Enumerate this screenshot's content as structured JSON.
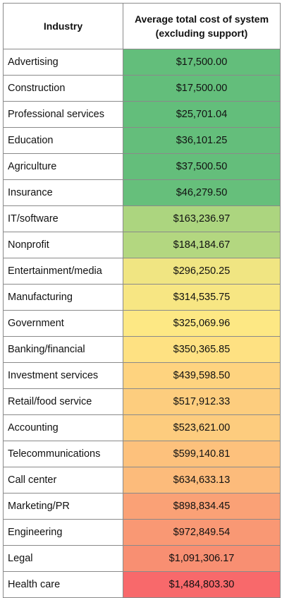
{
  "table": {
    "headers": {
      "industry": "Industry",
      "cost": "Average total cost of system (excluding support)"
    }
  },
  "chart_data": {
    "type": "table",
    "columns": [
      "Industry",
      "Average total cost of system (excluding support)"
    ],
    "rows": [
      {
        "industry": "Advertising",
        "cost": "$17,500.00",
        "value": 17500.0,
        "color": "#63be7b"
      },
      {
        "industry": "Construction",
        "cost": "$17,500.00",
        "value": 17500.0,
        "color": "#63be7b"
      },
      {
        "industry": "Professional services",
        "cost": "$25,701.04",
        "value": 25701.04,
        "color": "#63be7b"
      },
      {
        "industry": "Education",
        "cost": "$36,101.25",
        "value": 36101.25,
        "color": "#64be7b"
      },
      {
        "industry": "Agriculture",
        "cost": "$37,500.50",
        "value": 37500.5,
        "color": "#64be7b"
      },
      {
        "industry": "Insurance",
        "cost": "$46,279.50",
        "value": 46279.5,
        "color": "#66bf7b"
      },
      {
        "industry": "IT/software",
        "cost": "$163,236.97",
        "value": 163236.97,
        "color": "#acd57f"
      },
      {
        "industry": "Nonprofit",
        "cost": "$184,184.67",
        "value": 184184.67,
        "color": "#b3d780"
      },
      {
        "industry": "Entertainment/media",
        "cost": "$296,250.25",
        "value": 296250.25,
        "color": "#f0e582"
      },
      {
        "industry": "Manufacturing",
        "cost": "$314,535.75",
        "value": 314535.75,
        "color": "#f7e683"
      },
      {
        "industry": "Government",
        "cost": "$325,069.96",
        "value": 325069.96,
        "color": "#fde884"
      },
      {
        "industry": "Banking/financial",
        "cost": "$350,365.85",
        "value": 350365.85,
        "color": "#fee182"
      },
      {
        "industry": "Investment services",
        "cost": "$439,598.50",
        "value": 439598.5,
        "color": "#fed37f"
      },
      {
        "industry": "Retail/food service",
        "cost": "$517,912.33",
        "value": 517912.33,
        "color": "#fdcd7e"
      },
      {
        "industry": "Accounting",
        "cost": "$523,621.00",
        "value": 523621.0,
        "color": "#fdcc7e"
      },
      {
        "industry": "Telecommunications",
        "cost": "$599,140.81",
        "value": 599140.81,
        "color": "#fdc17c"
      },
      {
        "industry": "Call center",
        "cost": "$634,633.13",
        "value": 634633.13,
        "color": "#fcbb7b"
      },
      {
        "industry": "Marketing/PR",
        "cost": "$898,834.45",
        "value": 898834.45,
        "color": "#faa176"
      },
      {
        "industry": "Engineering",
        "cost": "$972,849.54",
        "value": 972849.54,
        "color": "#f99874"
      },
      {
        "industry": "Legal",
        "cost": "$1,091,306.17",
        "value": 1091306.17,
        "color": "#f88f72"
      },
      {
        "industry": "Health care",
        "cost": "$1,484,803.30",
        "value": 1484803.3,
        "color": "#f8696b"
      }
    ]
  }
}
